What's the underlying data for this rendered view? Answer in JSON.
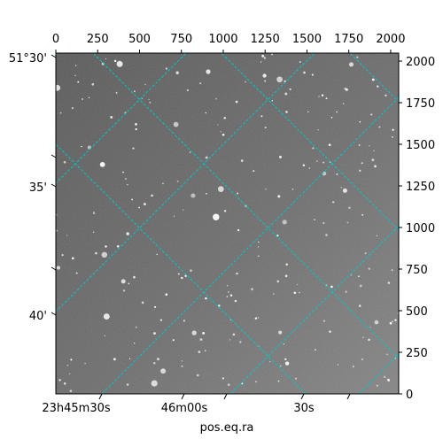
{
  "chart_data": {
    "type": "image",
    "title": "",
    "xlabel": "pos.eq.ra",
    "ylabel": "",
    "pixel_axes": {
      "x_ticks_top": [
        0,
        250,
        500,
        750,
        1000,
        1250,
        1500,
        1750,
        2000
      ],
      "y_ticks_right": [
        0,
        250,
        500,
        750,
        1000,
        1250,
        1500,
        1750,
        2000
      ],
      "xlim": [
        0,
        2048
      ],
      "ylim": [
        0,
        2048
      ]
    },
    "world_ticks": {
      "ra_bottom": [
        "23h45m30s",
        "46m00s",
        "30s"
      ],
      "dec_left": [
        "51°30'",
        "35'",
        "40'"
      ]
    },
    "grid": true,
    "grid_color": "#00c8c8",
    "image_style": "grayscale star field"
  }
}
